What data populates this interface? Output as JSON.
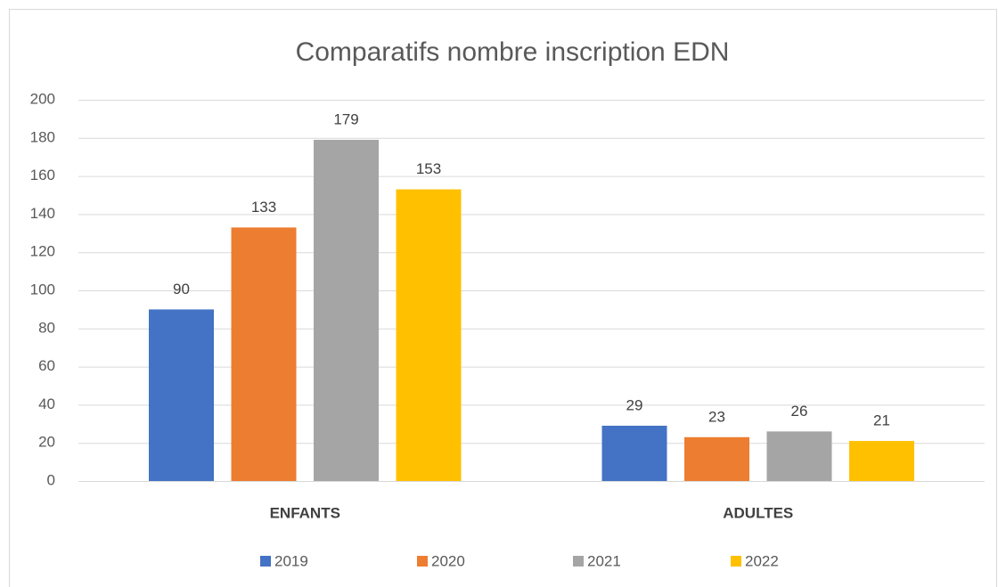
{
  "chart_data": {
    "type": "bar",
    "title": "Comparatifs nombre inscription EDN",
    "categories": [
      "ENFANTS",
      "ADULTES"
    ],
    "series": [
      {
        "name": "2019",
        "color": "#4472c4",
        "values": [
          90,
          29
        ]
      },
      {
        "name": "2020",
        "color": "#ed7d31",
        "values": [
          133,
          23
        ]
      },
      {
        "name": "2021",
        "color": "#a5a5a5",
        "values": [
          179,
          26
        ]
      },
      {
        "name": "2022",
        "color": "#ffc000",
        "values": [
          153,
          21
        ]
      }
    ],
    "ylim": [
      0,
      200
    ],
    "yticks": [
      0,
      20,
      40,
      60,
      80,
      100,
      120,
      140,
      160,
      180,
      200
    ],
    "grid": true,
    "legend": "bottom"
  }
}
